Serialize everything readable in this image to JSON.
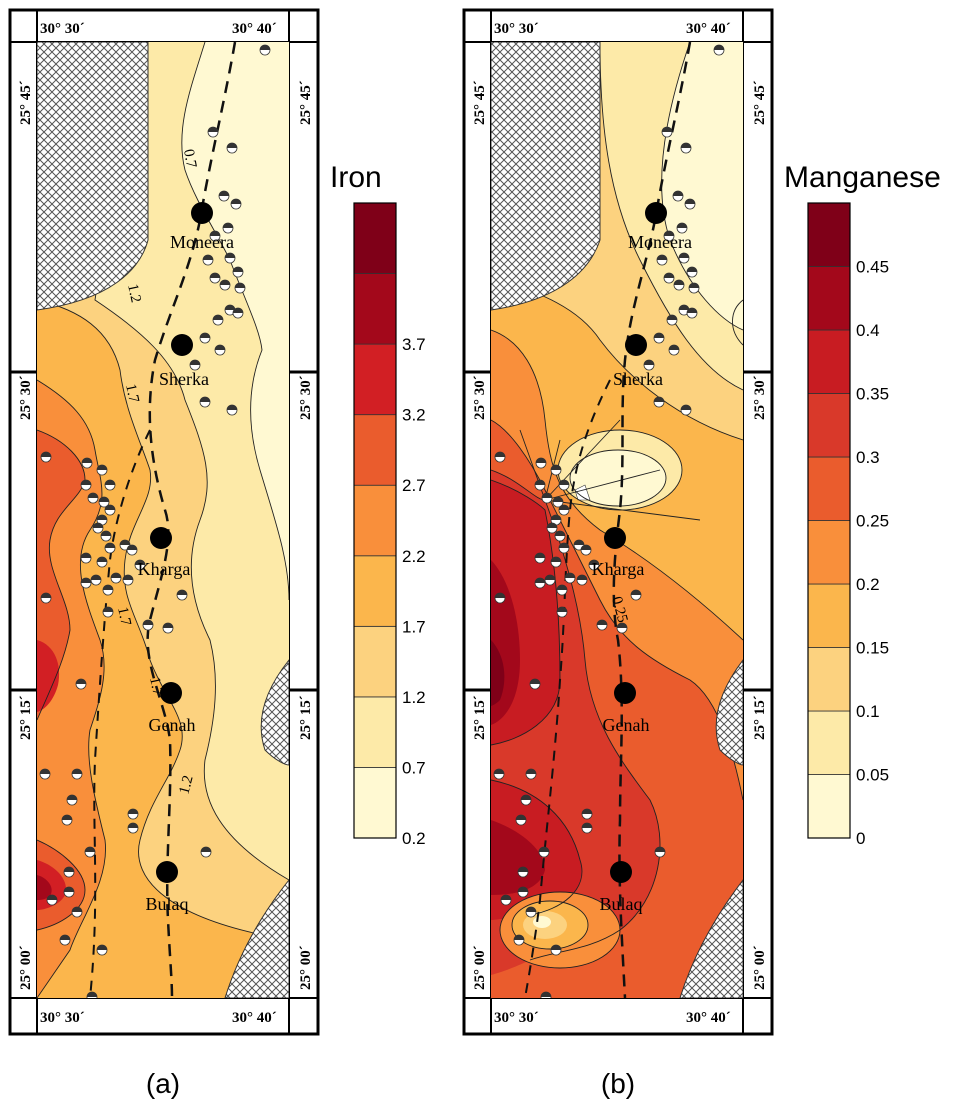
{
  "panels": [
    {
      "id": "a",
      "caption": "(a)",
      "legend_title": "Iron",
      "legend_ticks": [
        "0.2",
        "0.7",
        "1.2",
        "1.7",
        "2.2",
        "2.7",
        "3.2",
        "3.7"
      ],
      "legend_colors": [
        "#fff9d2",
        "#fdeaa8",
        "#fcd27f",
        "#fbb64c",
        "#f98f3b",
        "#ea5c2d",
        "#d21f24",
        "#a3081b",
        "#7f0018"
      ],
      "contour_labels": [
        "0.7",
        "1.2",
        "1.7",
        "1.7",
        "1.7",
        "1.2"
      ],
      "coords": {
        "top_left": "30° 30´",
        "top_right": "30° 40´",
        "bottom_left": "30° 30´",
        "bottom_right": "30° 40´",
        "lat_45": "25° 45´",
        "lat_30": "25° 30´",
        "lat_15": "25° 15´",
        "lat_00": "25° 00´"
      }
    },
    {
      "id": "b",
      "caption": "(b)",
      "legend_title": "Manganese",
      "legend_ticks": [
        "0",
        "0.05",
        "0.1",
        "0.15",
        "0.2",
        "0.25",
        "0.3",
        "0.35",
        "0.4",
        "0.45"
      ],
      "legend_colors": [
        "#fff9d2",
        "#fdeaa8",
        "#fcd27f",
        "#fbb64c",
        "#f98f3b",
        "#ea5c2d",
        "#d9392a",
        "#c81c22",
        "#a3081b",
        "#7f0018"
      ],
      "contour_labels": [
        "0.25"
      ],
      "coords": {
        "top_left": "30° 30´",
        "top_right": "30° 40´",
        "bottom_left": "30° 30´",
        "bottom_right": "30° 40´",
        "lat_45": "25° 45´",
        "lat_30": "25° 30´",
        "lat_15": "25° 15´",
        "lat_00": "25° 00´"
      }
    }
  ],
  "towns": [
    "Moneera",
    "Sherka",
    "Kharga",
    "Genah",
    "Bulaq"
  ]
}
